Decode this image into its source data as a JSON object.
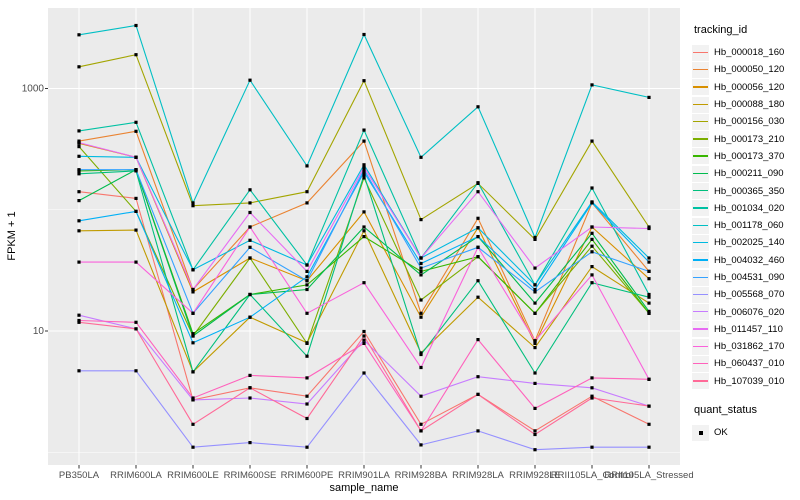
{
  "chart_data": {
    "type": "line",
    "title": "",
    "xlabel": "sample_name",
    "ylabel": "FPKM + 1",
    "y_scale": "log10",
    "y_ticks": [
      10,
      1000
    ],
    "y_tick_labels": [
      "10",
      "1000"
    ],
    "y_minor_gridlines": [
      1,
      100
    ],
    "ylim": [
      0.8,
      4600
    ],
    "grid": true,
    "panel_bg": "#EBEBEB",
    "grid_color": "#FFFFFF",
    "tick_label_color": "#4D4D4D",
    "marker": "black-square",
    "legend_title": "tracking_id",
    "legend_position": "right",
    "categories": [
      "PB350LA",
      "RRIM600LA",
      "RRIM600LE",
      "RRIM600SE",
      "RRIM600PE",
      "RRIM901LA",
      "RRIM928BA",
      "RRIM928LA",
      "RRIM928LE",
      "RRII105LA_Control",
      "RRII105LA_Stressed"
    ],
    "series": [
      {
        "name": "Hb_000018_160",
        "color": "#F8766D",
        "values": [
          141,
          124,
          2.7,
          3.4,
          2.9,
          9.9,
          1.7,
          3.0,
          1.5,
          2.9,
          1.7
        ]
      },
      {
        "name": "Hb_000050_120",
        "color": "#EA8331",
        "values": [
          368,
          444,
          22,
          72,
          114,
          368,
          14,
          85,
          8.3,
          114,
          31
        ]
      },
      {
        "name": "Hb_000056_120",
        "color": "#D89000",
        "values": [
          353,
          271,
          21,
          40,
          26,
          96,
          13,
          71,
          7.9,
          72,
          27
        ]
      },
      {
        "name": "Hb_000088_180",
        "color": "#C09B00",
        "values": [
          67,
          68,
          4.6,
          13,
          8.0,
          67,
          6.6,
          19,
          7.3,
          34,
          17
        ]
      },
      {
        "name": "Hb_000156_030",
        "color": "#A3A500",
        "values": [
          1510,
          1900,
          108,
          114,
          141,
          1160,
          83,
          165,
          57,
          368,
          72
        ]
      },
      {
        "name": "Hb_000173_210",
        "color": "#7CAE00",
        "values": [
          332,
          97,
          9.1,
          40,
          7.9,
          183,
          18,
          41,
          14,
          50,
          14
        ]
      },
      {
        "name": "Hb_000173_370",
        "color": "#39B600",
        "values": [
          209,
          214,
          9.5,
          20,
          24,
          60,
          31,
          41,
          14,
          57,
          14
        ]
      },
      {
        "name": "Hb_000211_090",
        "color": "#00BB4E",
        "values": [
          119,
          214,
          9.1,
          20,
          22,
          72,
          29,
          60,
          17,
          64,
          14.5
        ]
      },
      {
        "name": "Hb_000365_350",
        "color": "#00BF7D",
        "values": [
          198,
          209,
          4.6,
          20,
          6.2,
          193,
          6.4,
          26,
          4.5,
          25,
          19
        ]
      },
      {
        "name": "Hb_001034_020",
        "color": "#00C1A3",
        "values": [
          447,
          526,
          32,
          146,
          35,
          454,
          40,
          167,
          24,
          151,
          20
        ]
      },
      {
        "name": "Hb_001178_060",
        "color": "#00BFC4",
        "values": [
          2770,
          3310,
          114,
          1170,
          230,
          2790,
          271,
          707,
          59,
          1070,
          845
        ]
      },
      {
        "name": "Hb_002025_140",
        "color": "#00BAE0",
        "values": [
          276,
          271,
          32,
          56,
          35,
          235,
          40,
          71,
          24,
          116,
          40
        ]
      },
      {
        "name": "Hb_004032_460",
        "color": "#00B0F6",
        "values": [
          81,
          97,
          8.0,
          13,
          28,
          204,
          36,
          60,
          22,
          114,
          37
        ]
      },
      {
        "name": "Hb_004531_090",
        "color": "#35A2FF",
        "values": [
          214,
          214,
          14,
          49,
          26,
          214,
          33,
          49,
          21,
          45,
          31
        ]
      },
      {
        "name": "Hb_005568_070",
        "color": "#9590FF",
        "values": [
          4.7,
          4.7,
          1.1,
          1.2,
          1.1,
          4.5,
          1.15,
          1.5,
          1.05,
          1.1,
          1.1
        ]
      },
      {
        "name": "Hb_006076_020",
        "color": "#C77CFF",
        "values": [
          13.5,
          10.4,
          2.7,
          2.8,
          2.5,
          8.4,
          2.9,
          4.2,
          3.7,
          3.4,
          2.4
        ]
      },
      {
        "name": "Hb_011457_110",
        "color": "#E76BF3",
        "values": [
          358,
          271,
          22,
          95,
          31,
          224,
          40,
          141,
          33,
          72,
          70
        ]
      },
      {
        "name": "Hb_031862_170",
        "color": "#FA62DB",
        "values": [
          37,
          37,
          14,
          72,
          14,
          25,
          5.0,
          49,
          8.3,
          29,
          4.0
        ]
      },
      {
        "name": "Hb_060437_010",
        "color": "#FF62BC",
        "values": [
          12.2,
          11.8,
          2.8,
          4.3,
          4.1,
          7.9,
          1.5,
          8.5,
          2.3,
          4.1,
          4.0
        ]
      },
      {
        "name": "Hb_107039_010",
        "color": "#FF6A98",
        "values": [
          11.8,
          10.4,
          1.7,
          3.4,
          1.9,
          9.1,
          1.5,
          3.0,
          1.4,
          2.8,
          2.4
        ]
      }
    ],
    "legend2_title": "quant_status",
    "legend2_items": [
      {
        "label": "OK",
        "marker": "black-square"
      }
    ]
  }
}
